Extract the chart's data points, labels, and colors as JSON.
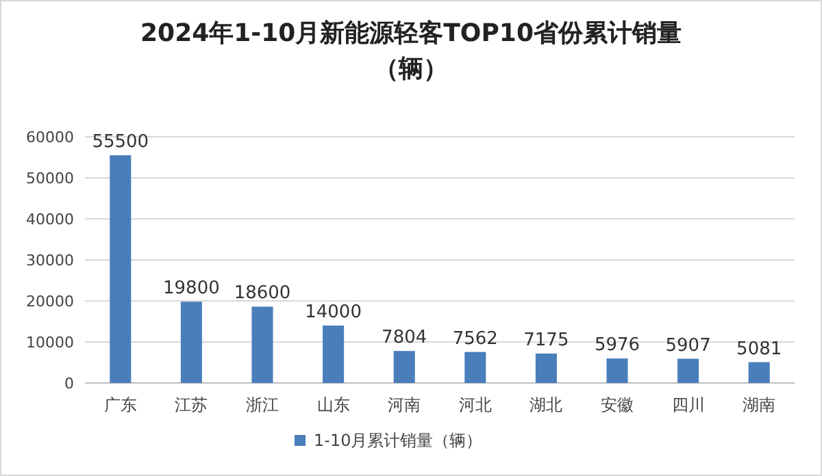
{
  "chart_data": {
    "type": "bar",
    "title": "2024年1-10月新能源轻客TOP10省份累计销量（辆）",
    "categories": [
      "广东",
      "江苏",
      "浙江",
      "山东",
      "河南",
      "河北",
      "湖北",
      "安徽",
      "四川",
      "湖南"
    ],
    "series": [
      {
        "name": "1-10月累计销量（辆）",
        "color": "#4a7ebb",
        "values": [
          55500,
          19800,
          18600,
          14000,
          7804,
          7562,
          7175,
          5976,
          5907,
          5081
        ]
      }
    ],
    "ylim": [
      0,
      60000
    ],
    "yticks": [
      0,
      10000,
      20000,
      30000,
      40000,
      50000,
      60000
    ],
    "grid": "y",
    "data_labels": true,
    "legend": "bottom"
  }
}
